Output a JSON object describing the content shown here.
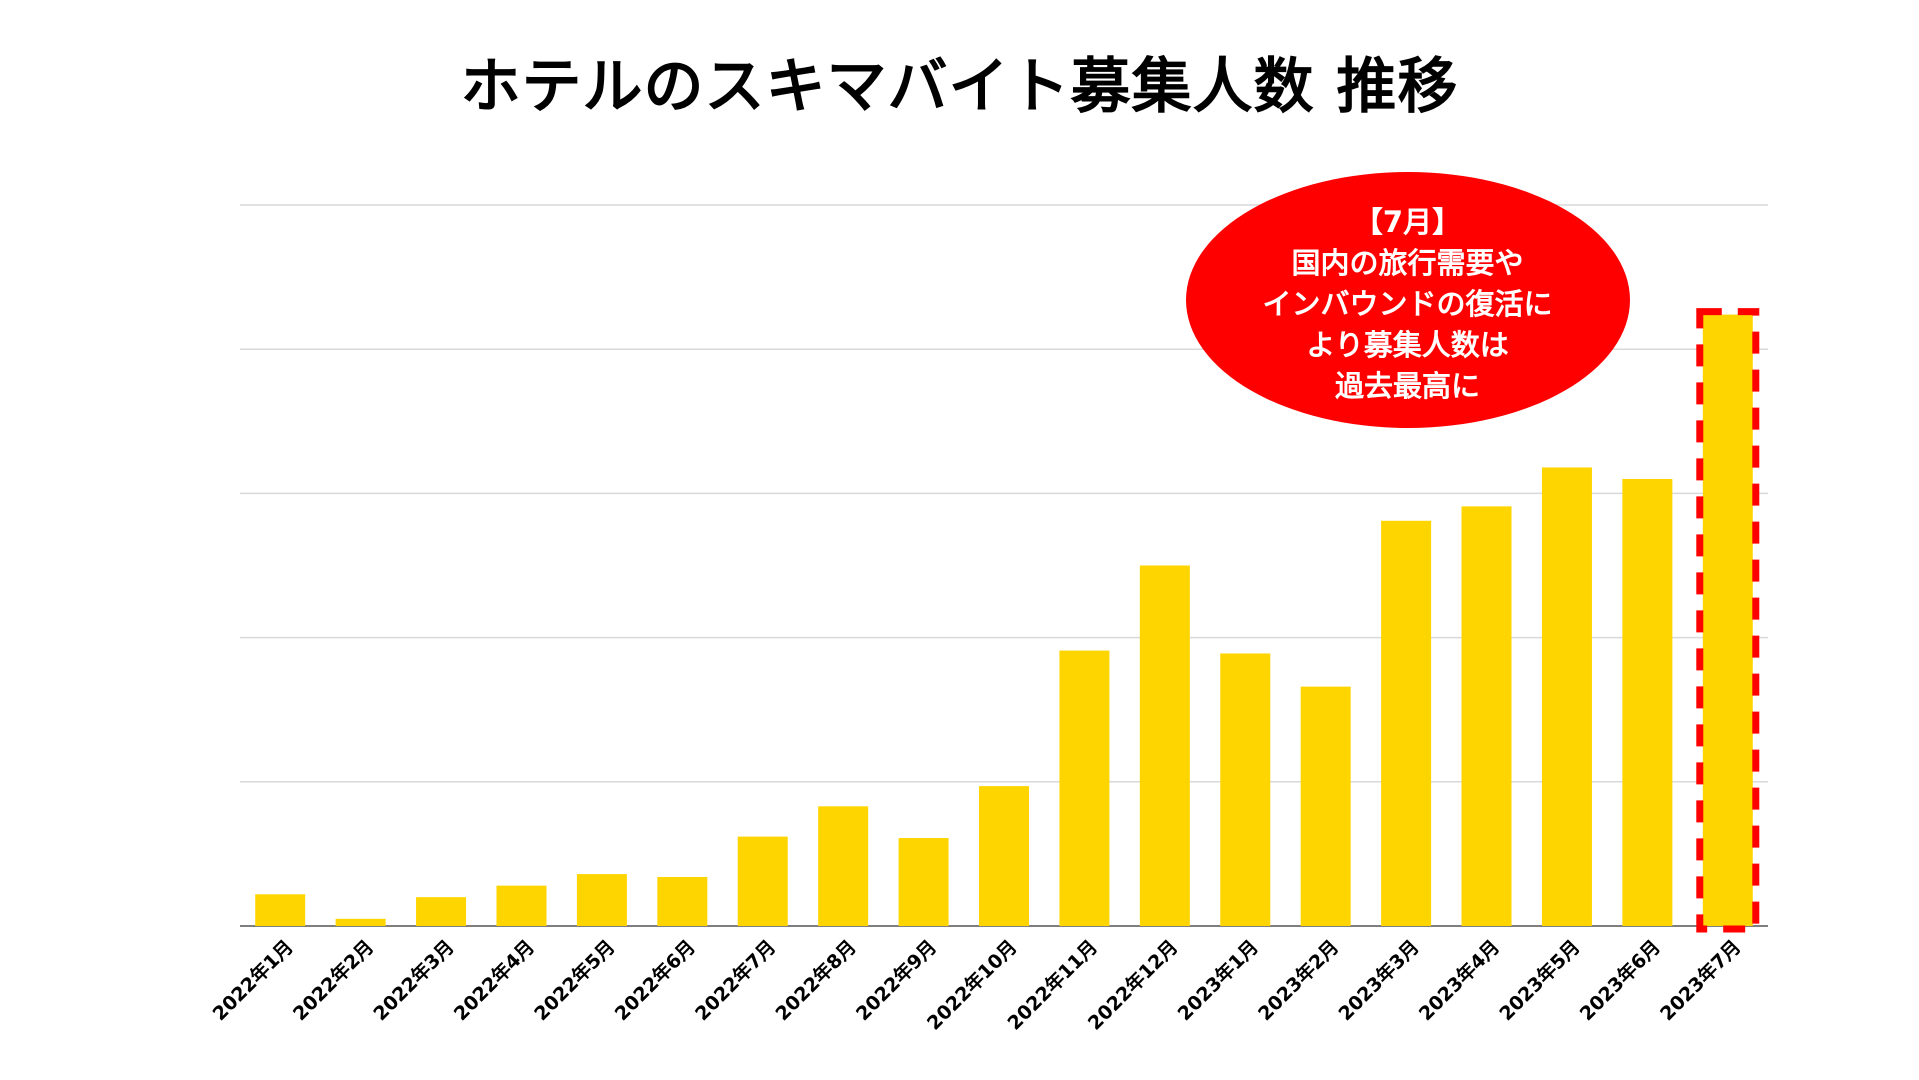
{
  "chart_data": {
    "type": "bar",
    "title": "ホテルのスキマバイト募集人数 推移",
    "categories": [
      "2022年1月",
      "2022年2月",
      "2022年3月",
      "2022年4月",
      "2022年5月",
      "2022年6月",
      "2022年7月",
      "2022年8月",
      "2022年9月",
      "2022年10月",
      "2022年11月",
      "2022年12月",
      "2023年1月",
      "2023年2月",
      "2023年3月",
      "2023年4月",
      "2023年5月",
      "2023年6月",
      "2023年7月"
    ],
    "values": [
      22,
      5,
      20,
      28,
      36,
      34,
      62,
      83,
      61,
      97,
      191,
      250,
      189,
      166,
      281,
      291,
      318,
      310,
      424
    ],
    "ylim": [
      0,
      500
    ],
    "grid": true,
    "gridlines": 5,
    "bar_color": "#ffd500",
    "highlight": {
      "index": 18,
      "border_color": "#ff0000"
    },
    "annotation": {
      "fill_color": "#ff0000",
      "lines": [
        "【7月】",
        "国内の旅行需要や",
        "インバウンドの復活に",
        "より募集人数は",
        "過去最高に"
      ]
    }
  }
}
